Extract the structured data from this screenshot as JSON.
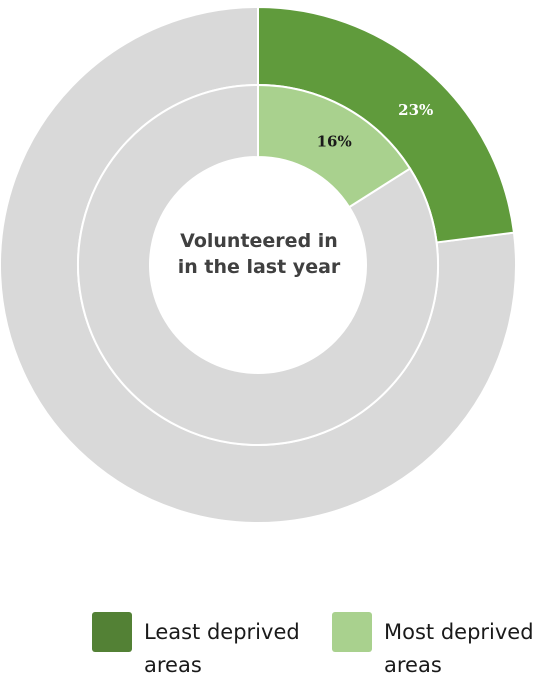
{
  "chart_data": {
    "type": "pie",
    "center_label": "Volunteered in in the last year",
    "series": [
      {
        "name": "Least deprived areas",
        "ring": "outer",
        "value": 23,
        "value_label": "23%",
        "color": "#609b3c",
        "remainder_color": "#d9d9d9"
      },
      {
        "name": "Most deprived areas",
        "ring": "inner",
        "value": 16,
        "value_label": "16%",
        "color": "#a9d18e",
        "remainder_color": "#d9d9d9"
      }
    ],
    "legend": {
      "placement": "bottom",
      "items": [
        {
          "label": "Least deprived areas",
          "color": "#538135"
        },
        {
          "label": "Most deprived areas",
          "color": "#a9d18e"
        }
      ]
    }
  }
}
